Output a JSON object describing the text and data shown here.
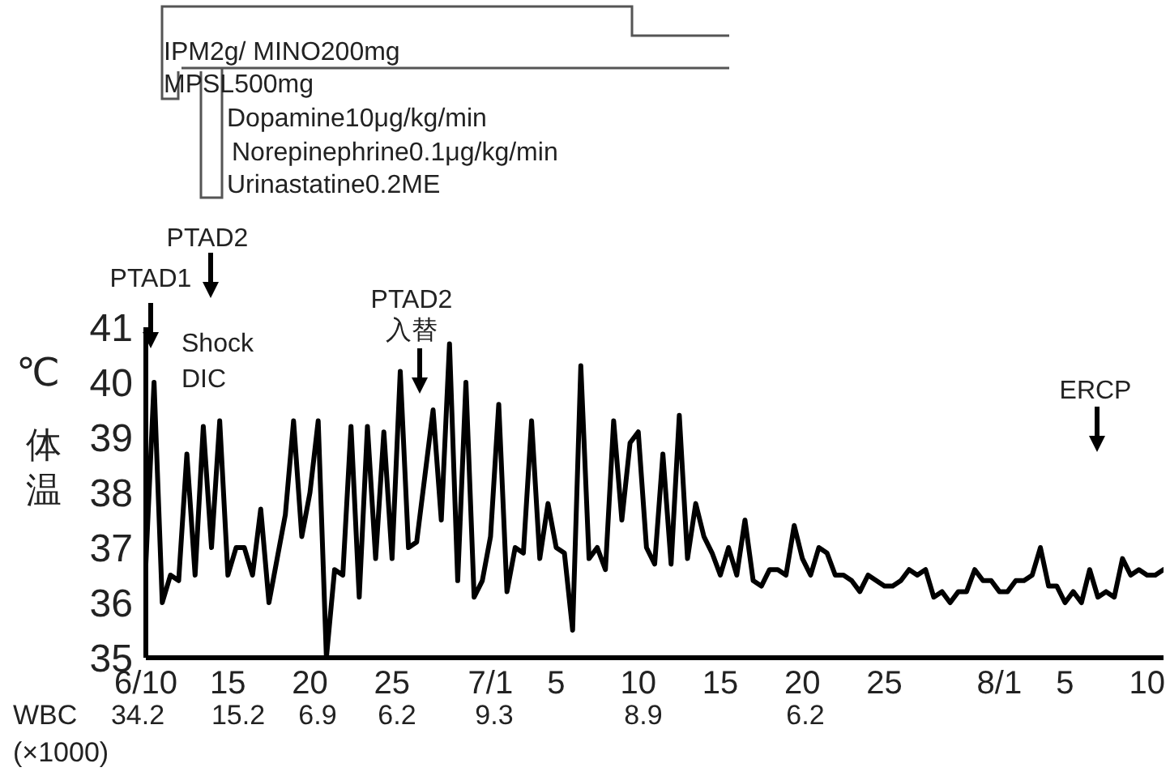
{
  "chart_data": {
    "type": "line",
    "ylabel": "体温",
    "color": "#000000",
    "line_style": "solid",
    "x": [
      "--06-10T00:00",
      "--06-10T12:00",
      "--06-11T00:00",
      "--06-11T12:00",
      "--06-12T00:00",
      "--06-12T12:00",
      "--06-13T00:00",
      "--06-13T12:00",
      "--06-14T00:00",
      "--06-14T12:00",
      "--06-15T00:00",
      "--06-15T12:00",
      "--06-16T00:00",
      "--06-16T12:00",
      "--06-17T00:00",
      "--06-17T12:00",
      "--06-18T00:00",
      "--06-18T12:00",
      "--06-19T00:00",
      "--06-19T12:00",
      "--06-20T00:00",
      "--06-20T12:00",
      "--06-21T00:00",
      "--06-21T12:00",
      "--06-22T00:00",
      "--06-22T12:00",
      "--06-23T00:00",
      "--06-23T12:00",
      "--06-24T00:00",
      "--06-24T12:00",
      "--06-25T00:00",
      "--06-25T12:00",
      "--06-26T00:00",
      "--06-26T12:00",
      "--06-27T00:00",
      "--06-27T12:00",
      "--06-28T00:00",
      "--06-28T12:00",
      "--06-29T00:00",
      "--06-29T12:00",
      "--06-30T00:00",
      "--06-30T12:00",
      "--07-01T00:00",
      "--07-01T12:00",
      "--07-02T00:00",
      "--07-02T12:00",
      "--07-03T00:00",
      "--07-03T12:00",
      "--07-04T00:00",
      "--07-04T12:00",
      "--07-05T00:00",
      "--07-05T12:00",
      "--07-06T00:00",
      "--07-06T12:00",
      "--07-07T00:00",
      "--07-07T12:00",
      "--07-08T00:00",
      "--07-08T12:00",
      "--07-09T00:00",
      "--07-09T12:00",
      "--07-10T00:00",
      "--07-10T12:00",
      "--07-11T00:00",
      "--07-11T12:00",
      "--07-12T00:00",
      "--07-12T12:00",
      "--07-13T00:00",
      "--07-13T12:00",
      "--07-14T00:00",
      "--07-14T12:00",
      "--07-15T00:00",
      "--07-15T12:00",
      "--07-16T00:00",
      "--07-16T12:00",
      "--07-17T00:00",
      "--07-17T12:00",
      "--07-18T00:00",
      "--07-18T12:00",
      "--07-19T00:00",
      "--07-19T12:00",
      "--07-20T00:00",
      "--07-20T12:00",
      "--07-21T00:00",
      "--07-21T12:00",
      "--07-22T00:00",
      "--07-22T12:00",
      "--07-23T00:00",
      "--07-23T12:00",
      "--07-24T00:00",
      "--07-24T12:00",
      "--07-25T00:00",
      "--07-25T12:00",
      "--07-26T00:00",
      "--07-26T12:00",
      "--07-27T00:00",
      "--07-27T12:00",
      "--07-28T00:00",
      "--07-28T12:00",
      "--07-29T00:00",
      "--07-29T12:00",
      "--07-30T00:00",
      "--07-30T12:00",
      "--07-31T00:00",
      "--07-31T12:00",
      "--08-01T00:00",
      "--08-01T12:00",
      "--08-02T00:00",
      "--08-02T12:00",
      "--08-03T00:00",
      "--08-03T12:00",
      "--08-04T00:00",
      "--08-04T12:00",
      "--08-05T00:00",
      "--08-05T12:00",
      "--08-06T00:00",
      "--08-06T12:00",
      "--08-07T00:00",
      "--08-07T12:00",
      "--08-08T00:00",
      "--08-08T12:00",
      "--08-09T00:00",
      "--08-09T12:00",
      "--08-10T00:00",
      "--08-10T12:00",
      "--08-11T00:00"
    ],
    "values": [
      36.7,
      40.0,
      36.0,
      36.5,
      36.4,
      38.7,
      36.5,
      39.2,
      37.0,
      39.3,
      36.5,
      37.0,
      37.0,
      36.5,
      37.7,
      36.0,
      36.8,
      37.6,
      39.3,
      37.2,
      38.0,
      39.3,
      35.0,
      36.6,
      36.5,
      39.2,
      36.1,
      39.2,
      36.8,
      39.1,
      36.8,
      40.2,
      37.0,
      37.1,
      38.3,
      39.5,
      37.5,
      40.7,
      36.4,
      40.0,
      36.1,
      36.4,
      37.2,
      39.6,
      36.2,
      37.0,
      36.9,
      39.3,
      36.8,
      37.8,
      37.0,
      36.9,
      35.5,
      40.3,
      36.8,
      37.0,
      36.6,
      39.3,
      37.5,
      38.9,
      39.1,
      37.0,
      36.7,
      38.7,
      36.7,
      39.4,
      36.8,
      37.8,
      37.2,
      36.9,
      36.5,
      37.0,
      36.5,
      37.5,
      36.4,
      36.3,
      36.6,
      36.6,
      36.5,
      37.4,
      36.8,
      36.5,
      37.0,
      36.9,
      36.5,
      36.5,
      36.4,
      36.2,
      36.5,
      36.4,
      36.3,
      36.3,
      36.4,
      36.6,
      36.5,
      36.6,
      36.1,
      36.2,
      36.0,
      36.2,
      36.2,
      36.6,
      36.4,
      36.4,
      36.2,
      36.2,
      36.4,
      36.4,
      36.5,
      37.0,
      36.3,
      36.3,
      36.0,
      36.2,
      36.0,
      36.6,
      36.1,
      36.2,
      36.1,
      36.8,
      36.5,
      36.6,
      36.5,
      36.5,
      36.6
    ],
    "xlim": [
      "--06-10",
      "--08-11"
    ],
    "xticks": [
      {
        "value": "--06-10",
        "label": "6/10"
      },
      {
        "value": "--06-15",
        "label": "15"
      },
      {
        "value": "--06-20",
        "label": "20"
      },
      {
        "value": "--06-25",
        "label": "25"
      },
      {
        "value": "--07-01",
        "label": "7/1"
      },
      {
        "value": "--07-05",
        "label": "5"
      },
      {
        "value": "--07-10",
        "label": "10"
      },
      {
        "value": "--07-15",
        "label": "15"
      },
      {
        "value": "--07-20",
        "label": "20"
      },
      {
        "value": "--07-25",
        "label": "25"
      },
      {
        "value": "--08-01",
        "label": "8/1"
      },
      {
        "value": "--08-05",
        "label": "5"
      },
      {
        "value": "--08-10",
        "label": "10"
      }
    ],
    "ylim": [
      35,
      41
    ],
    "yticks": [
      35,
      36,
      37,
      38,
      39,
      40,
      41
    ],
    "annotations": [
      "IPM2g/   MINO200mg",
      "MPSL500mg",
      "Dopamine10μg/kg/min",
      "Norepinephrine0.1μg/kg/min",
      "Urinastatine0.2ME",
      "Shock",
      "DIC",
      "℃",
      "WBC",
      "(×1000)",
      "PTAD1",
      "PTAD2",
      "PTAD2 入替",
      "ERCP",
      "34.2",
      "15.2",
      "6.9",
      "6.2",
      "9.3",
      "8.9",
      "6.2"
    ]
  }
}
